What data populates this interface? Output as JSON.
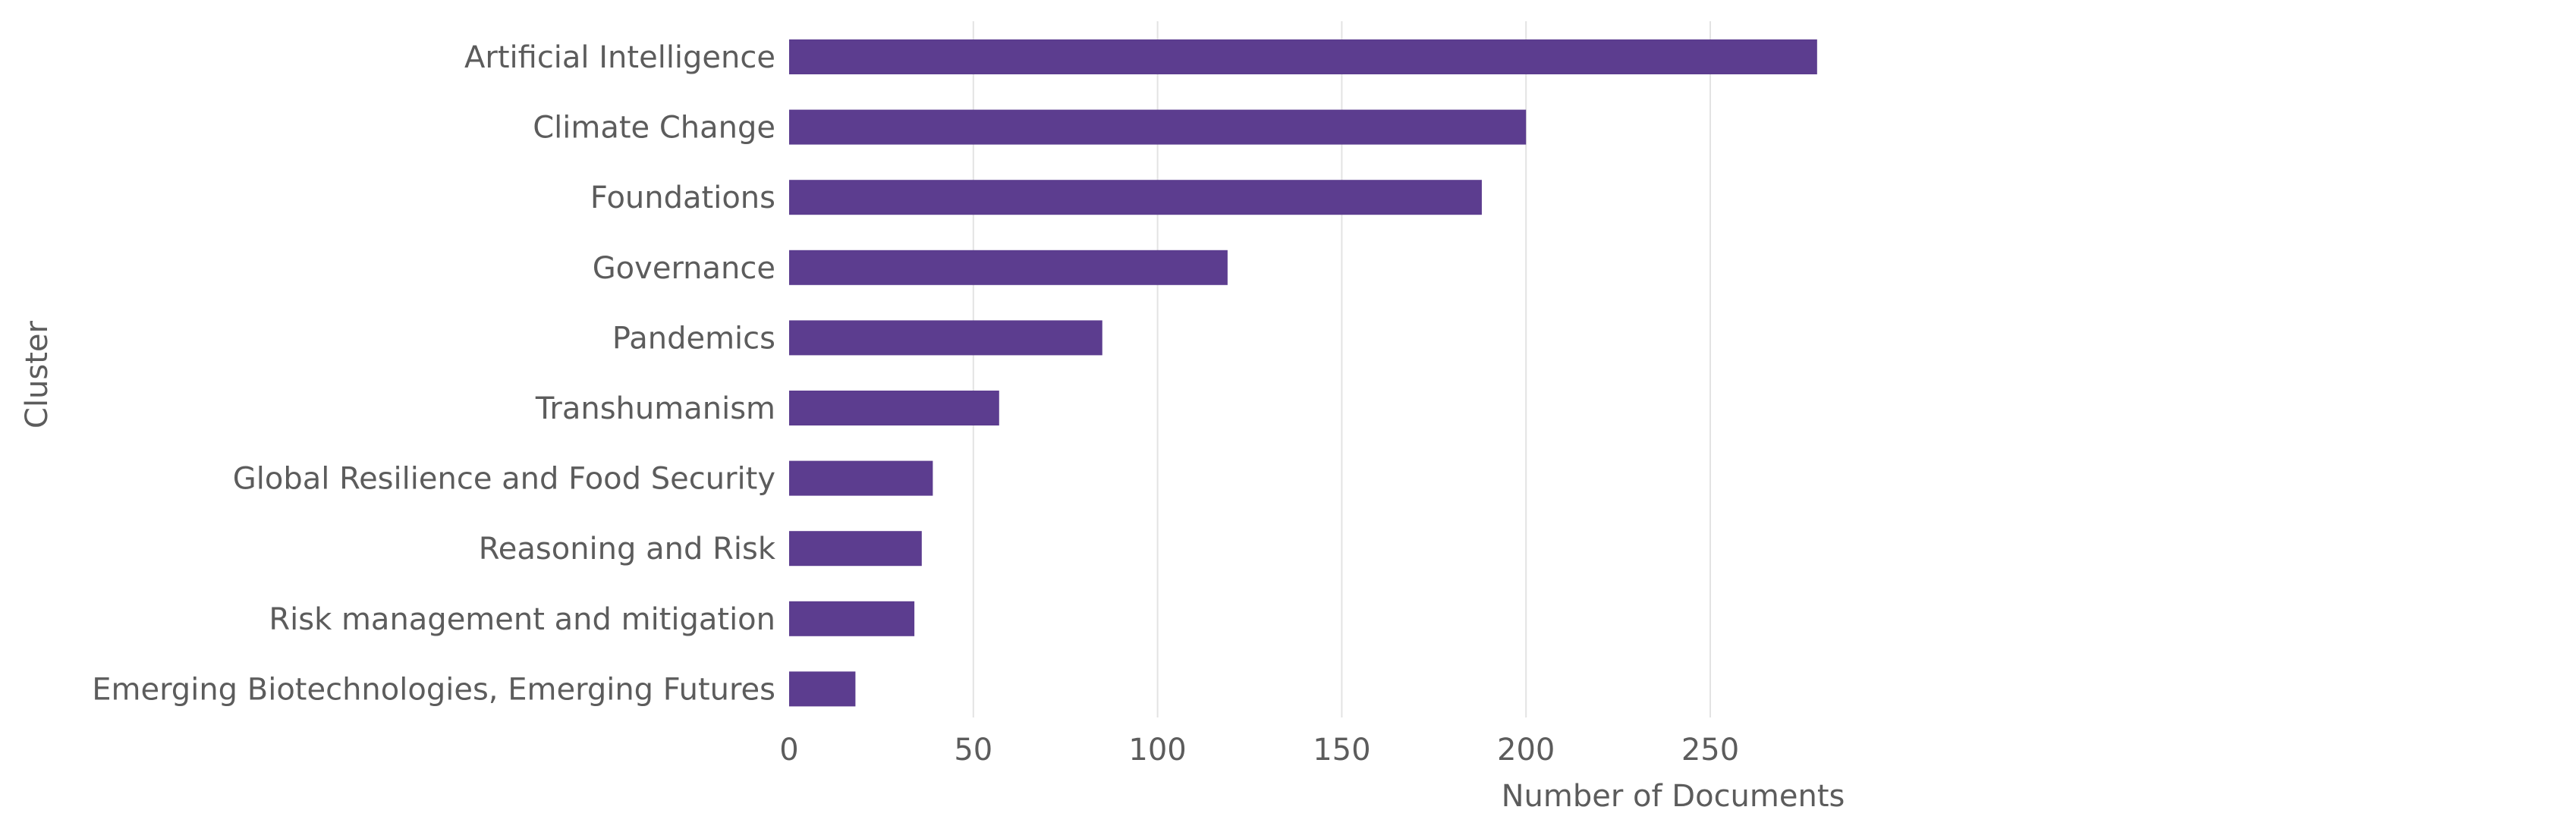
{
  "chart_data": {
    "type": "bar",
    "orientation": "horizontal",
    "categories": [
      "Artificial Intelligence",
      "Climate Change",
      "Foundations",
      "Governance",
      "Pandemics",
      "Transhumanism",
      "Global Resilience and Food Security",
      "Reasoning and Risk",
      "Risk management and mitigation",
      "Emerging Biotechnologies, Emerging Futures"
    ],
    "values": [
      279,
      200,
      188,
      119,
      85,
      57,
      39,
      36,
      34,
      18
    ],
    "xlabel": "Number of Documents",
    "ylabel": "Cluster",
    "xlim": [
      0,
      290
    ],
    "xticks": [
      0,
      50,
      100,
      150,
      200,
      250
    ],
    "grid": "vertical",
    "colors": {
      "bar": "#5c3d8f",
      "text": "#5c5c5c",
      "grid": "#e3e3e3"
    }
  }
}
